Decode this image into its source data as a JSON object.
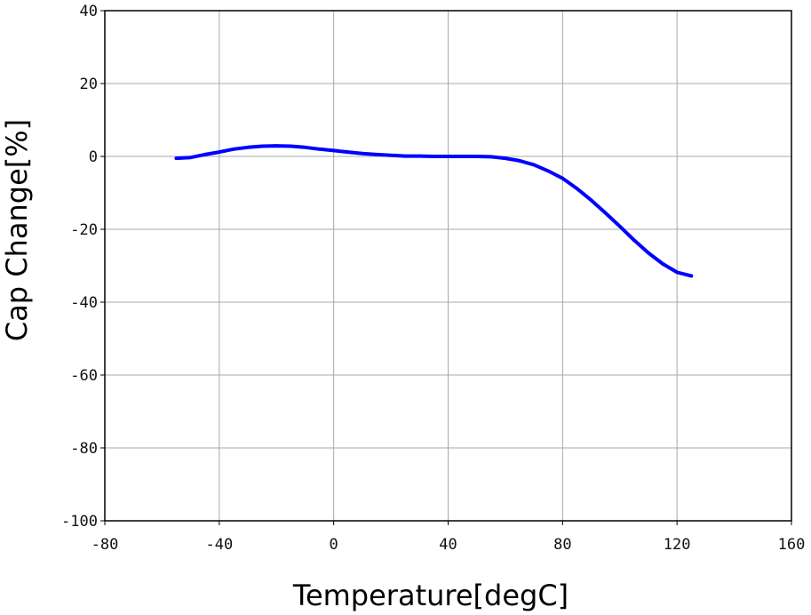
{
  "chart_data": {
    "type": "line",
    "title": "",
    "xlabel": "Temperature[degC]",
    "ylabel": "Cap Change[%]",
    "xlim": [
      -80,
      160
    ],
    "ylim": [
      -100,
      40
    ],
    "x_ticks": [
      -80,
      -40,
      0,
      40,
      80,
      120,
      160
    ],
    "y_ticks": [
      40,
      20,
      0,
      -20,
      -40,
      -60,
      -80,
      -100
    ],
    "x_tick_labels": [
      "-80",
      "-40",
      "0",
      "40",
      "80",
      "120",
      "160"
    ],
    "y_tick_labels": [
      "40",
      "20",
      "0",
      "-20",
      "-40",
      "-60",
      "-80",
      "-100"
    ],
    "grid": true,
    "series": [
      {
        "color": "#0000ff",
        "x": [
          -55,
          -50,
          -45,
          -40,
          -35,
          -30,
          -25,
          -20,
          -15,
          -10,
          -5,
          0,
          5,
          10,
          15,
          20,
          25,
          30,
          35,
          40,
          45,
          50,
          55,
          60,
          65,
          70,
          75,
          80,
          85,
          90,
          95,
          100,
          105,
          110,
          115,
          120,
          125
        ],
        "y": [
          -0.5,
          -0.3,
          0.5,
          1.2,
          2.0,
          2.5,
          2.8,
          2.9,
          2.8,
          2.5,
          2.0,
          1.6,
          1.2,
          0.8,
          0.5,
          0.3,
          0.1,
          0.1,
          0.0,
          0.0,
          0.0,
          0.0,
          -0.1,
          -0.5,
          -1.2,
          -2.3,
          -4.0,
          -6.0,
          -8.8,
          -12.0,
          -15.5,
          -19.2,
          -23.0,
          -26.5,
          -29.5,
          -31.8,
          -32.8
        ]
      }
    ]
  }
}
